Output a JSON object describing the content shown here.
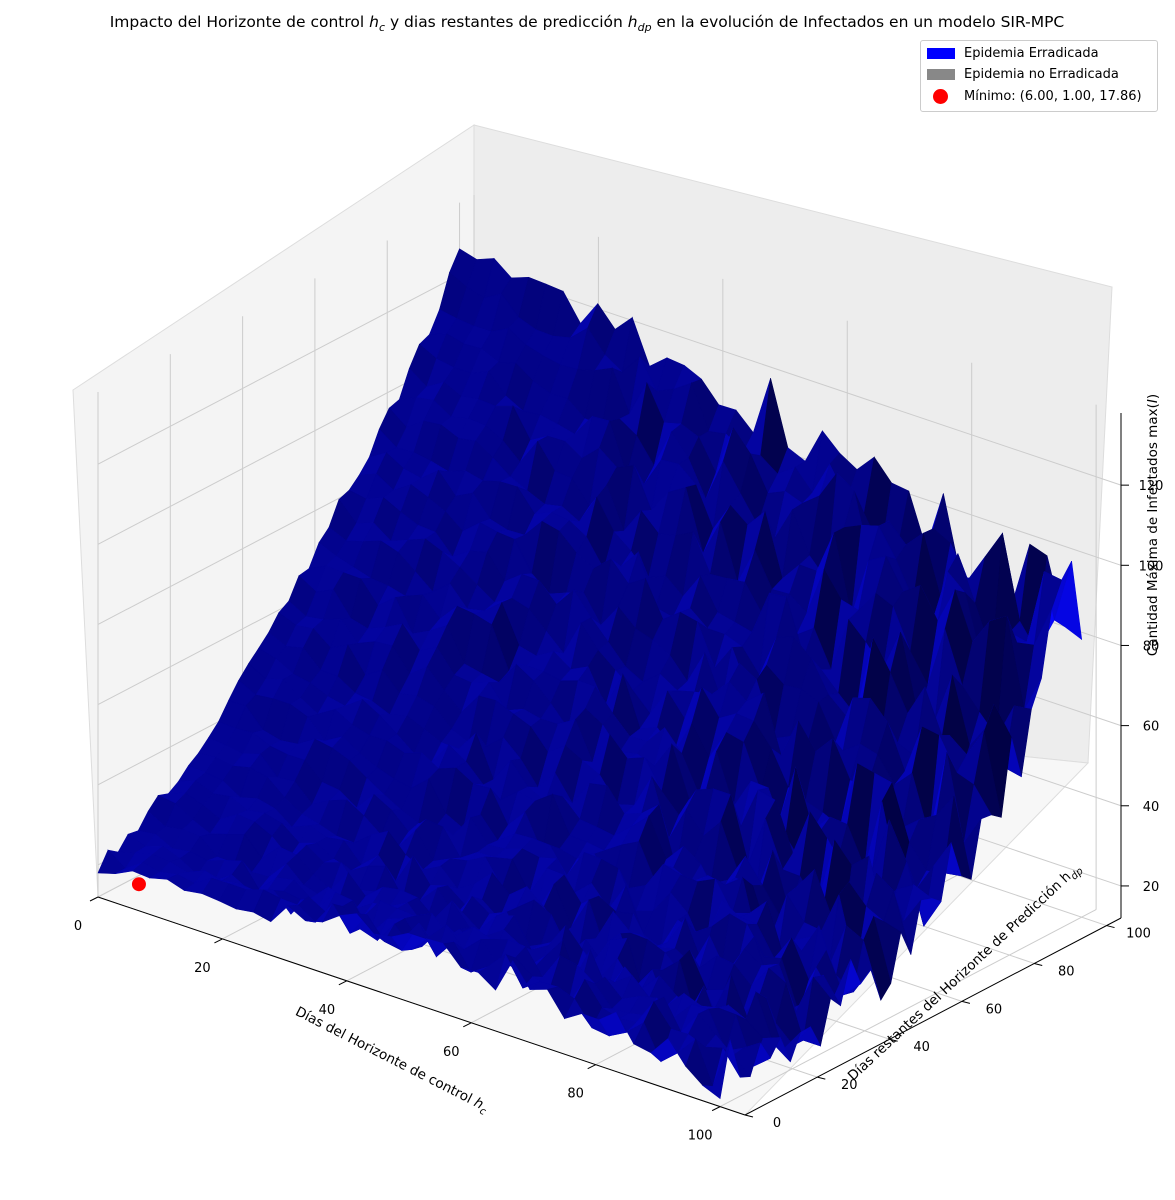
{
  "chart_data": {
    "type": "surface3d",
    "title": "Impacto del Horizonte de control h_c y dias restantes de predicción h_dp en la evolución de Infectados en un modelo SIR-MPC",
    "title_parts": {
      "a": "Impacto del Horizonte de control ",
      "b": " y dias restantes de predicción ",
      "c": " en la evolución de Infectados en un modelo SIR-MPC",
      "hc_main": "h",
      "hc_sub": "c",
      "hdp_main": "h",
      "hdp_sub": "dp"
    },
    "xlabel": "Días del Horizonte de control h_c",
    "xlabel_parts": {
      "main": "Días del Horizonte de control ",
      "var": "h",
      "sub": "c"
    },
    "ylabel": "Días restantes del Horizonte de Predicción h_dp",
    "ylabel_parts": {
      "main": "Días restantes del Horizonte de Predicción h",
      "sub": "dp"
    },
    "zlabel": "Cantidad Máxima de Infectados max(I)",
    "zlabel_parts": {
      "main": "Cantidad Máxima de Infectados max(",
      "var": "I",
      "end": ")"
    },
    "xlim": [
      0,
      104
    ],
    "ylim": [
      0,
      104
    ],
    "zlim": [
      12,
      138
    ],
    "xticks": [
      0,
      20,
      40,
      60,
      80,
      100
    ],
    "yticks": [
      0,
      20,
      40,
      60,
      80,
      100
    ],
    "zticks": [
      20,
      40,
      60,
      80,
      100,
      120
    ],
    "grid": true,
    "legend_position": "top-right",
    "legend": [
      {
        "label": "Epidemia Erradicada",
        "type": "patch",
        "color": "#0000ff"
      },
      {
        "label": "Epidemia no Erradicada",
        "type": "patch",
        "color": "#888888"
      },
      {
        "label": "Mínimo: (6.00, 1.00, 17.86)",
        "type": "point",
        "color": "#ff0000"
      }
    ],
    "minimum": {
      "x": 6.0,
      "y": 1.0,
      "z": 17.86
    },
    "surface": {
      "x": [
        0,
        10,
        20,
        30,
        40,
        50,
        60,
        70,
        80,
        90,
        100
      ],
      "y": [
        0,
        10,
        20,
        30,
        40,
        50,
        60,
        70,
        80,
        90,
        100
      ],
      "z": [
        [
          20,
          24,
          30,
          38,
          48,
          58,
          70,
          82,
          94,
          108,
          125
        ],
        [
          20,
          22,
          27,
          34,
          44,
          55,
          67,
          80,
          93,
          107,
          124
        ],
        [
          22,
          21,
          25,
          31,
          40,
          51,
          63,
          76,
          90,
          105,
          122
        ],
        [
          24,
          22,
          23,
          29,
          37,
          47,
          59,
          72,
          86,
          101,
          119
        ],
        [
          26,
          23,
          22,
          27,
          34,
          44,
          55,
          68,
          82,
          97,
          115
        ],
        [
          27,
          24,
          23,
          25,
          31,
          40,
          51,
          64,
          78,
          93,
          112
        ],
        [
          27,
          25,
          23,
          24,
          29,
          37,
          47,
          59,
          74,
          89,
          108
        ],
        [
          26,
          24,
          23,
          23,
          27,
          34,
          43,
          55,
          70,
          86,
          104
        ],
        [
          24,
          23,
          22,
          22,
          26,
          32,
          40,
          52,
          66,
          83,
          100
        ],
        [
          22,
          22,
          21,
          21,
          25,
          30,
          38,
          49,
          63,
          80,
          96
        ],
        [
          20,
          21,
          20,
          20,
          24,
          29,
          36,
          47,
          60,
          77,
          92
        ]
      ],
      "color": "#0000ff"
    }
  }
}
